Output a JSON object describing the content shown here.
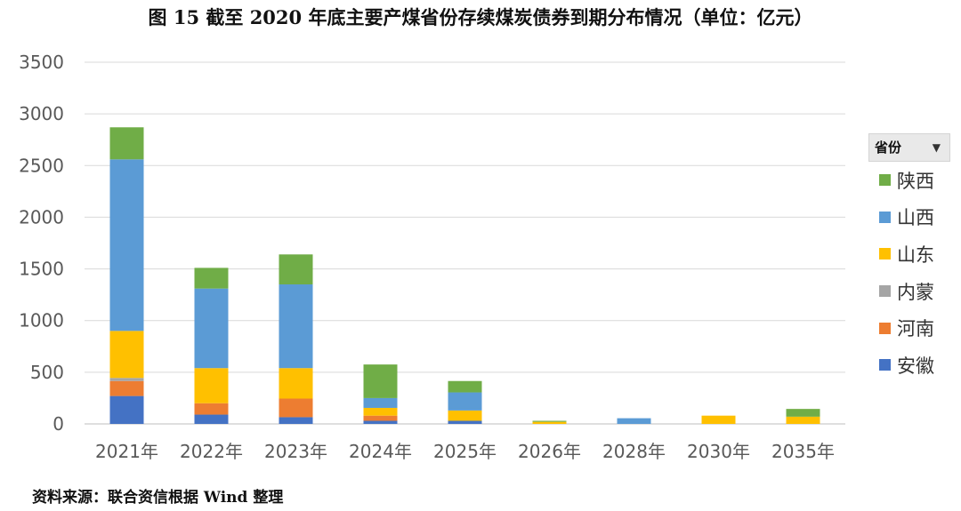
{
  "title": "图 15    截至 2020 年底主要产煤省份存续煤炭债券到期分布情况（单位：亿元）",
  "source": "资料来源：联合资信根据 Wind 整理",
  "legend": {
    "header": "省份",
    "dropdown_icon": "caret-down-icon"
  },
  "chart_data": {
    "type": "bar",
    "stacked": true,
    "title": "图 15    截至 2020 年底主要产煤省份存续煤炭债券到期分布情况（单位：亿元）",
    "ylim": [
      0,
      3500
    ],
    "yticks": [
      0,
      500,
      1000,
      1500,
      2000,
      2500,
      3000,
      3500
    ],
    "grid": true,
    "legend_position": "right",
    "categories": [
      "2021年",
      "2022年",
      "2023年",
      "2024年",
      "2025年",
      "2026年",
      "2028年",
      "2030年",
      "2035年"
    ],
    "series": [
      {
        "name": "安徽",
        "color": "#4472c4",
        "values": [
          270,
          90,
          65,
          30,
          30,
          0,
          0,
          0,
          0
        ]
      },
      {
        "name": "河南",
        "color": "#ed7d31",
        "values": [
          145,
          110,
          180,
          50,
          0,
          0,
          0,
          0,
          0
        ]
      },
      {
        "name": "内蒙",
        "color": "#a5a5a5",
        "values": [
          30,
          0,
          0,
          0,
          0,
          0,
          0,
          0,
          0
        ]
      },
      {
        "name": "山东",
        "color": "#ffc000",
        "values": [
          455,
          340,
          295,
          75,
          100,
          20,
          0,
          80,
          70
        ]
      },
      {
        "name": "山西",
        "color": "#5b9bd5",
        "values": [
          1660,
          770,
          810,
          95,
          175,
          0,
          55,
          0,
          0
        ]
      },
      {
        "name": "陕西",
        "color": "#70ad47",
        "values": [
          310,
          200,
          290,
          325,
          110,
          10,
          0,
          0,
          75
        ]
      }
    ],
    "legend_order": [
      "陕西",
      "山西",
      "山东",
      "内蒙",
      "河南",
      "安徽"
    ]
  }
}
